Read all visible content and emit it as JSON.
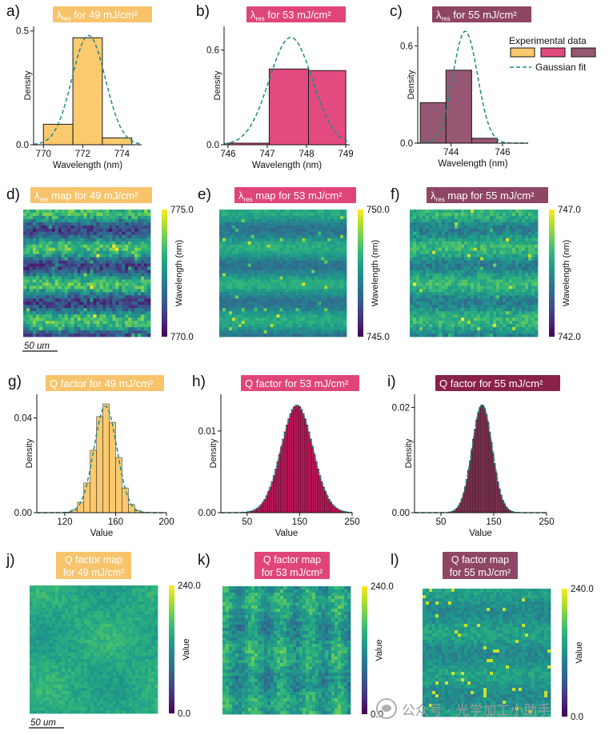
{
  "chart_data": [
    {
      "id": "a",
      "panel_label": "a)",
      "type": "bar",
      "title_prefix": "λ",
      "title_sub": "res",
      "title": "for 49 mJ/cm²",
      "title_bg": "#f7c46c",
      "xlabel": "Wavelength (nm)",
      "ylabel": "Density",
      "bin_edges": [
        770,
        771.5,
        773,
        774.5
      ],
      "values": [
        0.09,
        0.47,
        0.03
      ],
      "xlim": [
        769.5,
        775
      ],
      "ylim": [
        0,
        0.52
      ],
      "xticks": [
        "770",
        "772",
        "774"
      ],
      "xtick_values": [
        770,
        772,
        774
      ],
      "yticks": [
        "0.0",
        "0.5"
      ],
      "ytick_values": [
        0,
        0.5
      ],
      "fit_mean": 772.3,
      "fit_sd": 0.85,
      "fit_peak": 0.48,
      "bar_color": "#fbc96e",
      "fit_color": "#1f8a84"
    },
    {
      "id": "b",
      "panel_label": "b)",
      "type": "bar",
      "title_prefix": "λ",
      "title_sub": "res",
      "title": "for 53 mJ/cm²",
      "title_bg": "#e0457a",
      "xlabel": "Wavelength (nm)",
      "ylabel": "Density",
      "bin_edges": [
        746,
        747.05,
        748.05,
        749
      ],
      "values": [
        0.01,
        0.48,
        0.47
      ],
      "xlim": [
        745.9,
        749.1
      ],
      "ylim": [
        0,
        0.75
      ],
      "xticks": [
        "746",
        "747",
        "748",
        "749"
      ],
      "xtick_values": [
        746,
        747,
        748,
        749
      ],
      "yticks": [
        "0.0",
        "0.6"
      ],
      "ytick_values": [
        0,
        0.6
      ],
      "fit_mean": 747.6,
      "fit_sd": 0.55,
      "fit_peak": 0.68,
      "bar_color": "#e24a80",
      "fit_color": "#1f8a84"
    },
    {
      "id": "c",
      "panel_label": "c)",
      "type": "bar",
      "title_prefix": "λ",
      "title_sub": "res",
      "title": "for 55 mJ/cm²",
      "title_bg": "#8f4564",
      "xlabel": "Wavelength (nm)",
      "ylabel": "Density",
      "bin_edges": [
        742.8,
        743.8,
        744.8,
        745.8
      ],
      "values": [
        0.25,
        0.45,
        0.03
      ],
      "xlim": [
        742.7,
        747
      ],
      "ylim": [
        0,
        0.72
      ],
      "xticks": [
        "744",
        "746"
      ],
      "xtick_values": [
        744,
        746
      ],
      "yticks": [
        "0.0",
        "0.6"
      ],
      "ytick_values": [
        0,
        0.6
      ],
      "fit_mean": 744.55,
      "fit_sd": 0.48,
      "fit_peak": 0.69,
      "bar_color": "#955771",
      "fit_color": "#1f8a84",
      "legend": {
        "title": "Experimental data",
        "fit_label": "Gaussian fit",
        "swatches": [
          "#fbc96e",
          "#e24a80",
          "#955771"
        ]
      }
    },
    {
      "id": "d",
      "panel_label": "d)",
      "type": "heatmap",
      "title_prefix": "λ",
      "title_sub": "res",
      "title": "map for 49 mJ/cm²",
      "title_bg": "#f7c46c",
      "colorbar_max": "775.0",
      "colorbar_min": "770.0",
      "colorbar_label": "Wavelength (nm)",
      "pattern": "bands",
      "base": 0.45,
      "band_amp": 0.25,
      "noise": 0.3,
      "seed": 11,
      "scale_bar": "50 um"
    },
    {
      "id": "e",
      "panel_label": "e)",
      "type": "heatmap",
      "title_prefix": "λ",
      "title_sub": "res",
      "title": "map for 53 mJ/cm²",
      "title_bg": "#e0457a",
      "colorbar_max": "750.0",
      "colorbar_min": "745.0",
      "colorbar_label": "Wavelength (nm)",
      "pattern": "bands",
      "base": 0.5,
      "band_amp": 0.12,
      "noise": 0.12,
      "seed": 23
    },
    {
      "id": "f",
      "panel_label": "f)",
      "type": "heatmap",
      "title_prefix": "λ",
      "title_sub": "res",
      "title": "map for 55 mJ/cm²",
      "title_bg": "#8f4564",
      "colorbar_max": "747.0",
      "colorbar_min": "742.0",
      "colorbar_label": "Wavelength (nm)",
      "pattern": "bands",
      "base": 0.55,
      "band_amp": 0.12,
      "noise": 0.2,
      "seed": 37
    },
    {
      "id": "g",
      "panel_label": "g)",
      "type": "bar",
      "title": "Q factor for 49 mJ/cm²",
      "title_bg": "#f7c46c",
      "xlabel": "Value",
      "ylabel": "Density",
      "hist_from": 100,
      "hist_to": 200,
      "hist_bins": 20,
      "hist_mean": 152,
      "hist_sd": 9,
      "hist_peak": 0.046,
      "xlim": [
        98,
        200
      ],
      "ylim": [
        0,
        0.05
      ],
      "xticks": [
        "120",
        "160",
        "200"
      ],
      "xtick_values": [
        120,
        160,
        200
      ],
      "yticks": [
        "0.00",
        "0.04"
      ],
      "ytick_values": [
        0,
        0.04
      ],
      "fit_mean": 152,
      "fit_sd": 9,
      "fit_peak": 0.045,
      "bar_color": "#fbc96e",
      "fit_color": "#1f8a84"
    },
    {
      "id": "h",
      "panel_label": "h)",
      "type": "bar",
      "title": "Q factor for 53 mJ/cm²",
      "title_bg": "#e0457a",
      "xlabel": "Value",
      "ylabel": "Density",
      "hist_from": 40,
      "hist_to": 250,
      "hist_bins": 60,
      "hist_mean": 145,
      "hist_sd": 30,
      "hist_peak": 0.0132,
      "xlim": [
        0,
        250
      ],
      "ylim": [
        0,
        0.0145
      ],
      "xticks": [
        "50",
        "150",
        "250"
      ],
      "xtick_values": [
        50,
        150,
        250
      ],
      "yticks": [
        "0.00",
        "0.01"
      ],
      "ytick_values": [
        0,
        0.01
      ],
      "fit_mean": 145,
      "fit_sd": 30,
      "fit_peak": 0.0131,
      "bar_color": "#d4125e",
      "fit_color": "#1f8a84"
    },
    {
      "id": "i",
      "panel_label": "i)",
      "type": "bar",
      "title": "Q factor for 55 mJ/cm²",
      "title_bg": "#8a2148",
      "xlabel": "Value",
      "ylabel": "Density",
      "hist_from": 60,
      "hist_to": 200,
      "hist_bins": 45,
      "hist_mean": 128,
      "hist_sd": 19,
      "hist_peak": 0.0205,
      "xlim": [
        0,
        250
      ],
      "ylim": [
        0,
        0.0225
      ],
      "xticks": [
        "50",
        "150",
        "250"
      ],
      "xtick_values": [
        50,
        150,
        250
      ],
      "yticks": [
        "0.00",
        "0.02"
      ],
      "ytick_values": [
        0,
        0.02
      ],
      "fit_mean": 128,
      "fit_sd": 19,
      "fit_peak": 0.0205,
      "bar_color": "#8e3358",
      "fit_color": "#1f8a84"
    },
    {
      "id": "j",
      "panel_label": "j)",
      "type": "heatmap",
      "title": "Q factor map",
      "title_line2": "for 49 mJ/cm²",
      "title_bg": "#f7c46c",
      "colorbar_max": "240.0",
      "colorbar_min": "0.0",
      "colorbar_label": "Value",
      "pattern": "smooth",
      "base": 0.6,
      "band_amp": 0.0,
      "noise": 0.12,
      "seed": 51,
      "scale_bar": "50 um"
    },
    {
      "id": "k",
      "panel_label": "k)",
      "type": "heatmap",
      "title": "Q factor map",
      "title_line2": "for 53 mJ/cm²",
      "title_bg": "#e0457a",
      "colorbar_max": "240.0",
      "colorbar_min": "0.0",
      "colorbar_label": "Value",
      "pattern": "stripes",
      "base": 0.55,
      "band_amp": 0.08,
      "noise": 0.22,
      "seed": 63
    },
    {
      "id": "l",
      "panel_label": "l)",
      "type": "heatmap",
      "title": "Q factor map",
      "title_line2": "for 55 mJ/cm²",
      "title_bg": "#8f4564",
      "colorbar_max": "240.0",
      "colorbar_min": "0.0",
      "colorbar_label": "Value",
      "pattern": "speckle",
      "base": 0.52,
      "band_amp": 0.05,
      "noise": 0.14,
      "seed": 79
    }
  ],
  "watermark": {
    "text": "公众号 · 光学加工小助手",
    "icon": "wechat-logo-icon"
  }
}
